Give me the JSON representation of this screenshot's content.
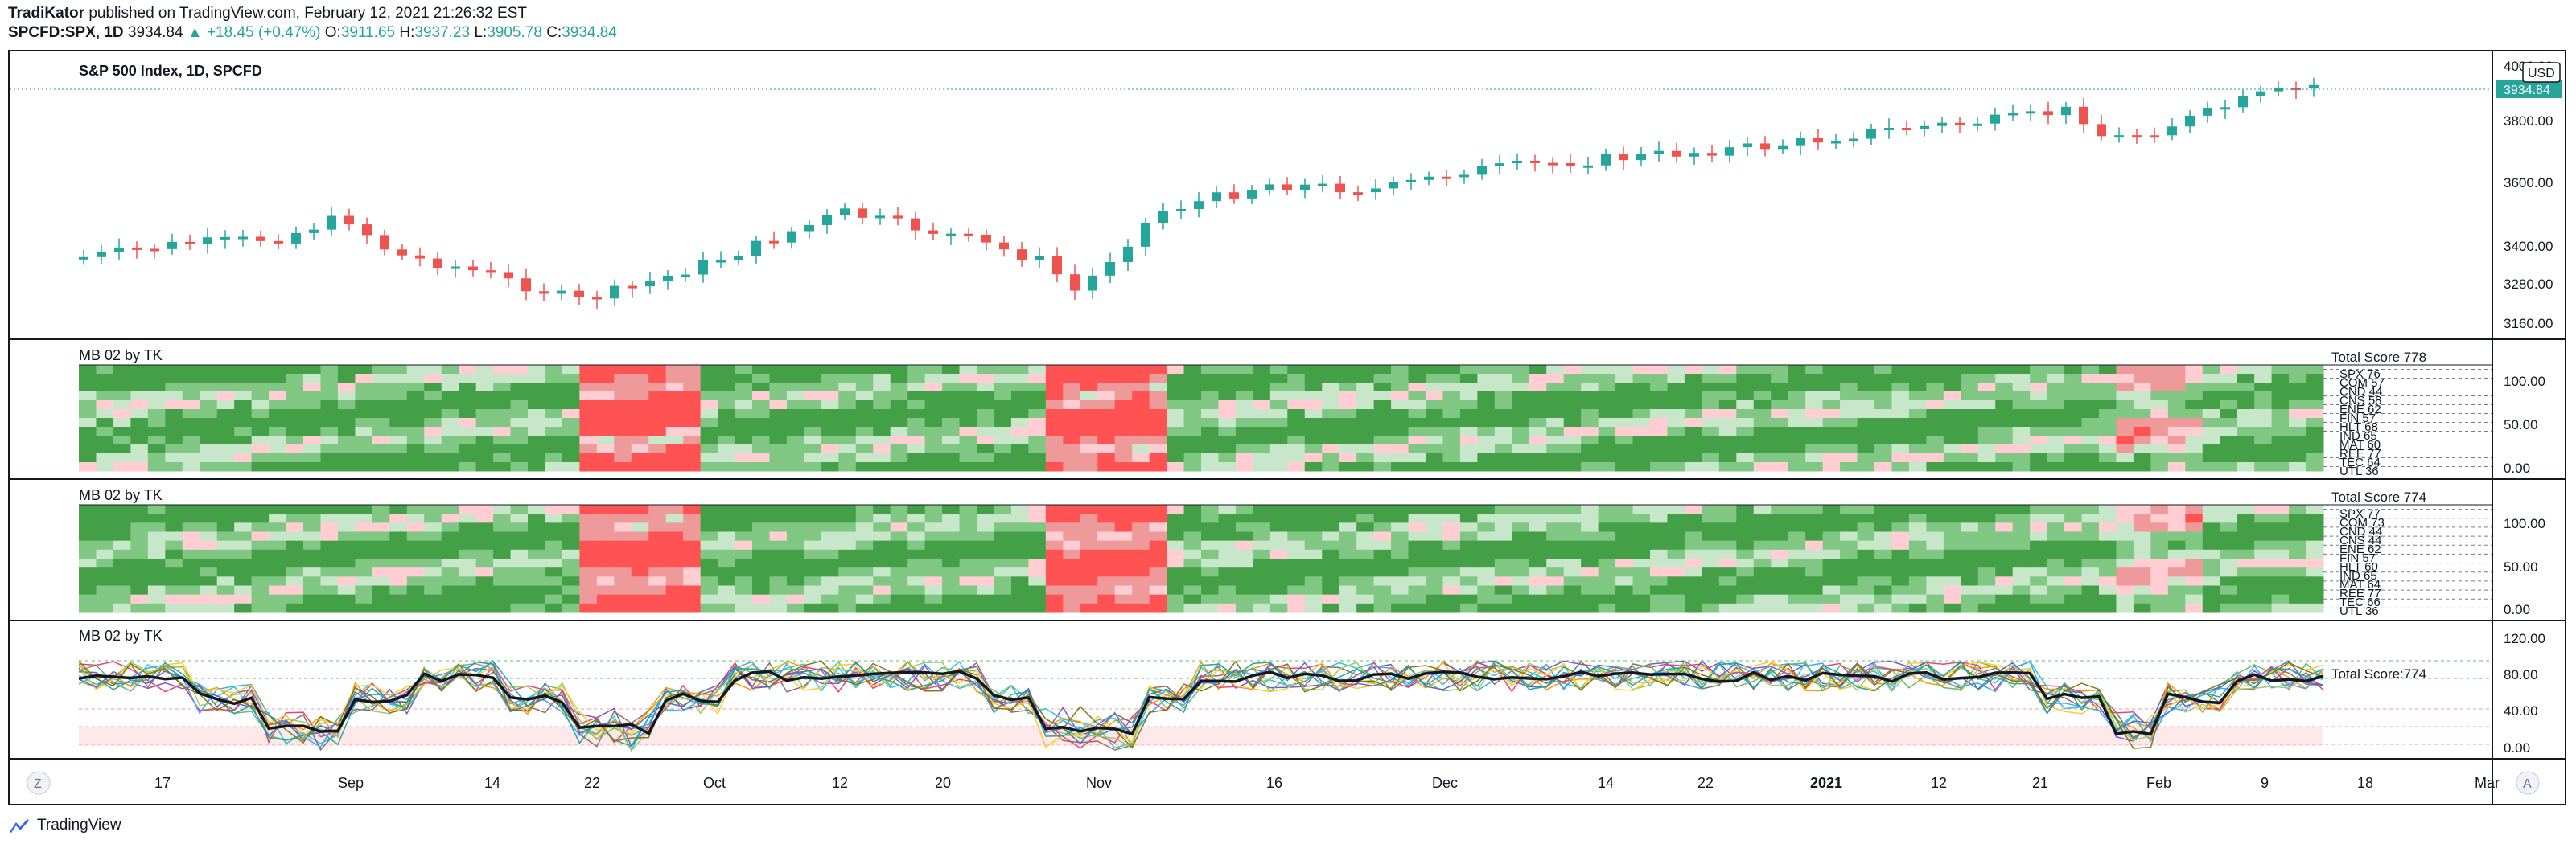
{
  "header": {
    "author": "TradiKator",
    "published_text": "published on TradingView.com, February 12, 2021 21:26:32 EST",
    "symbol": "SPCFD:SPX, 1D",
    "last": "3934.84",
    "change": "+18.45 (+0.47%)",
    "o_label": "O:",
    "o": "3911.65",
    "h_label": "H:",
    "h": "3937.23",
    "l_label": "L:",
    "l": "3905.78",
    "c_label": "C:",
    "c": "3934.84"
  },
  "main_pane": {
    "title": "S&P 500 Index, 1D, SPCFD",
    "currency_button": "USD",
    "price_tag": "3934.84",
    "price_ticks": [
      "3800.00",
      "3600.00",
      "3400.00",
      "3280.00",
      "3160.00"
    ],
    "price_top_clipped": "4000.00"
  },
  "pane2": {
    "title": "MB 02 by TK",
    "total_score": "Total Score 778",
    "rows": [
      "SPX 76",
      "COM 57",
      "CND 44",
      "CNS 58",
      "ENE 62",
      "FIN 57",
      "HLT 68",
      "IND 65",
      "MAT 60",
      "REE 77",
      "TEC 64",
      "UTL 36"
    ],
    "ticks": [
      "100.00",
      "50.00",
      "0.00"
    ]
  },
  "pane3": {
    "title": "MB 02 by TK",
    "total_score": "Total Score 774",
    "rows": [
      "SPX 77",
      "COM 73",
      "CND 44",
      "CNS 44",
      "ENE 62",
      "FIN 57",
      "HLT 60",
      "IND 65",
      "MAT 64",
      "REE 77",
      "TEC 66",
      "UTL 36"
    ],
    "ticks": [
      "100.00",
      "50.00",
      "0.00"
    ]
  },
  "pane4": {
    "title": "MB 02 by TK",
    "total_score": "Total Score:774",
    "ticks": [
      "120.00",
      "80.00",
      "40.00",
      "0.00"
    ]
  },
  "time_axis": {
    "labels": [
      "17",
      "Sep",
      "14",
      "22",
      "Oct",
      "12",
      "20",
      "Nov",
      "16",
      "Dec",
      "14",
      "22",
      "2021",
      "12",
      "21",
      "Feb",
      "9",
      "18",
      "Mar"
    ],
    "left_button": "Z",
    "right_button": "A"
  },
  "footer": {
    "brand": "TradingView"
  },
  "colors": {
    "up": "#26a69a",
    "down": "#ef5350",
    "text": "#131722"
  }
}
